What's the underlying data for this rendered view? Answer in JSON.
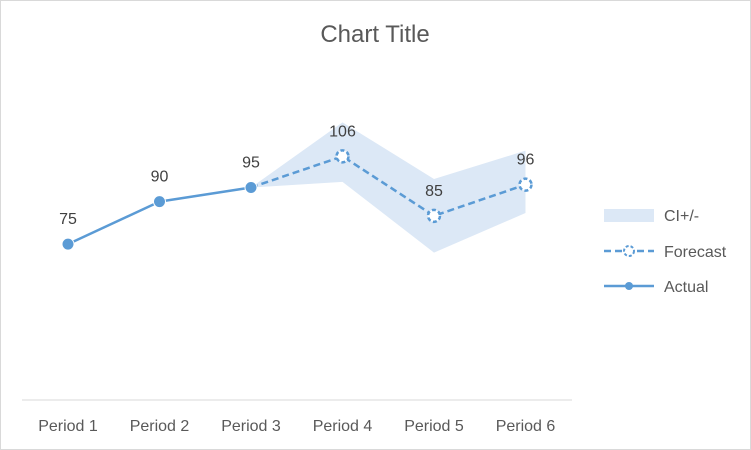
{
  "chart_data": {
    "type": "line",
    "title": "Chart Title",
    "categories": [
      "Period 1",
      "Period 2",
      "Period 3",
      "Period 4",
      "Period 5",
      "Period 6"
    ],
    "series": [
      {
        "name": "Actual",
        "values": [
          75,
          90,
          95,
          null,
          null,
          null
        ],
        "style": "solid",
        "color": "#5b9bd5"
      },
      {
        "name": "Forecast",
        "values": [
          null,
          null,
          95,
          106,
          85,
          96
        ],
        "style": "dashed",
        "color": "#5b9bd5"
      }
    ],
    "ci": {
      "name": "CI+/-",
      "color": "#dce8f6",
      "upper": [
        null,
        null,
        95,
        118,
        98,
        108
      ],
      "lower": [
        null,
        null,
        95,
        97,
        72,
        86
      ]
    },
    "data_labels": [
      75,
      90,
      95,
      106,
      85,
      96
    ],
    "ylim": [
      20,
      140
    ],
    "xlabel": "",
    "ylabel": "",
    "grid": false,
    "legend": {
      "position": "right",
      "entries": [
        "CI+/-",
        "Forecast",
        "Actual"
      ]
    }
  }
}
